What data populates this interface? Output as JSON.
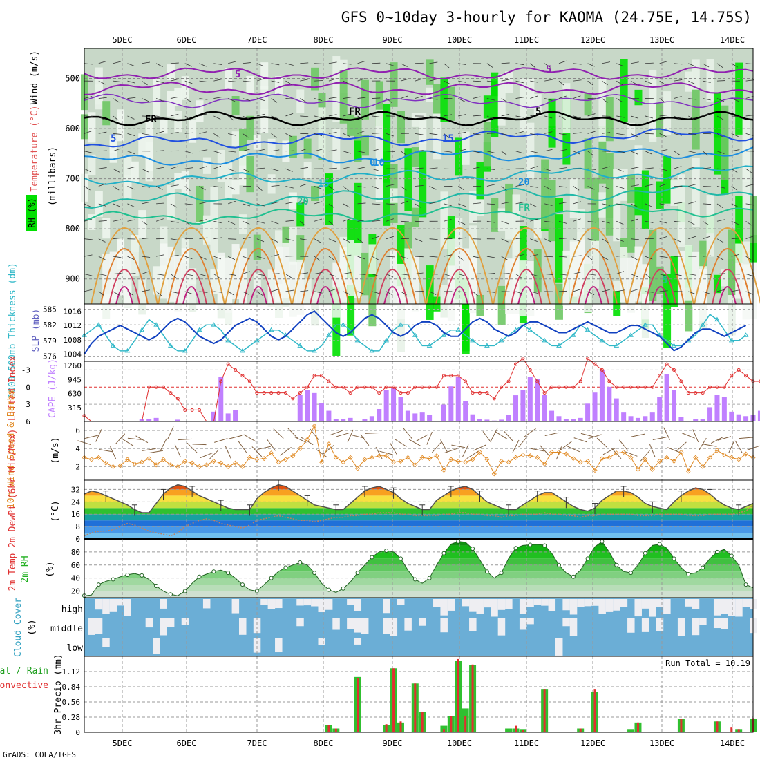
{
  "title": "GFS 0~10day 3-hourly for KAOMA (24.75E, 14.75S)",
  "credit": "GrADS: COLA/IGES",
  "run_total_label": "Run Total = 10.19",
  "colors": {
    "rh_dark_green": "#00e000",
    "rh_green": "#6ec864",
    "rh_pale": "#c8d8c8",
    "thickness": "#30b8c8",
    "slp": "#1040c0",
    "lifted_index": "#e03030",
    "cape": "#c080ff",
    "wind_speed": "#e08820",
    "wind_barbs": "#806040",
    "cloud": "#6baed6",
    "precip_total": "#30c030",
    "precip_convective": "#e03030"
  },
  "chart_data": [
    {
      "panel": "upper-air",
      "type": "heatmap",
      "x_ticks": [
        "5DEC",
        "6DEC",
        "7DEC",
        "8DEC",
        "9DEC",
        "10DEC",
        "11DEC",
        "12DEC",
        "13DEC",
        "14DEC"
      ],
      "y_ticks": [
        "500",
        "600",
        "700",
        "800",
        "900"
      ],
      "ylabel_rh": "RH (%)",
      "ylabel_wind": "Wind (m/s)",
      "ylabel_temp": "Temperature (°C)",
      "ylabel_pressure": "(millibars)",
      "contour_labels": [
        "5",
        "FR",
        "5",
        "10",
        "15",
        "20",
        "FR",
        "5",
        "5",
        "15",
        "20",
        "FR",
        "5",
        "0"
      ],
      "ylim": [
        440,
        950
      ]
    },
    {
      "panel": "thickness-slp",
      "type": "line",
      "ylabel_left": "1000-500mb Thickness (dm)",
      "ylabel_right": "SLP (mb)",
      "left_ticks": [
        "585",
        "582",
        "579",
        "576"
      ],
      "right_ticks": [
        "1016",
        "1012",
        "1008",
        "1004"
      ],
      "series": [
        {
          "name": "1000-500mb Thickness (dm)",
          "values": [
            580,
            581,
            582,
            580,
            578,
            577,
            577,
            579,
            581,
            583,
            582,
            580,
            578,
            577,
            577,
            579,
            581,
            582,
            582,
            581,
            579,
            578,
            577,
            578,
            579,
            580,
            581,
            581,
            580,
            579,
            578,
            577,
            577,
            578,
            580,
            582,
            582,
            581,
            579,
            578,
            577,
            577,
            579,
            581,
            582,
            582,
            580,
            578,
            578,
            579,
            580,
            581,
            581,
            580,
            579,
            578,
            578,
            578,
            579,
            580,
            581,
            582,
            581,
            580,
            579,
            578,
            578,
            579,
            580,
            582,
            581,
            580,
            579,
            578,
            578,
            579,
            580,
            581,
            582,
            582,
            580,
            579,
            578,
            578,
            579,
            580,
            582,
            584,
            583,
            581,
            579,
            579,
            580
          ]
        },
        {
          "name": "SLP (mb)",
          "values": [
            1004,
            1007,
            1009,
            1010,
            1011,
            1012,
            1011,
            1010,
            1009,
            1008,
            1009,
            1011,
            1013,
            1014,
            1013,
            1011,
            1009,
            1008,
            1007,
            1008,
            1010,
            1012,
            1013,
            1014,
            1013,
            1011,
            1009,
            1008,
            1009,
            1011,
            1013,
            1015,
            1016,
            1014,
            1012,
            1010,
            1009,
            1010,
            1012,
            1014,
            1015,
            1014,
            1012,
            1010,
            1009,
            1010,
            1012,
            1013,
            1013,
            1012,
            1010,
            1009,
            1009,
            1011,
            1013,
            1014,
            1013,
            1011,
            1010,
            1009,
            1010,
            1012,
            1013,
            1013,
            1012,
            1011,
            1010,
            1010,
            1011,
            1012,
            1013,
            1012,
            1011,
            1010,
            1010,
            1011,
            1012,
            1012,
            1011,
            1010,
            1009,
            1007,
            1005,
            1006,
            1008,
            1010,
            1011,
            1011,
            1010,
            1009,
            1010,
            1011,
            1012
          ]
        }
      ]
    },
    {
      "panel": "li-cape",
      "type": "bar",
      "ylabel_left": "Lifted Index",
      "ylabel_right": "CAPE (J/kg)",
      "li_ticks": [
        "-3",
        "0",
        "3",
        "6"
      ],
      "cape_ticks": [
        "1260",
        "945",
        "630",
        "315"
      ],
      "series": [
        {
          "name": "Lifted Index",
          "values": [
            5,
            6,
            7,
            8,
            8,
            8,
            8,
            8,
            8,
            0,
            0,
            0,
            1,
            2,
            4,
            4,
            4,
            7,
            7,
            -1,
            -4,
            -3,
            -2,
            -1,
            1,
            1,
            1,
            1,
            1,
            2,
            1,
            0,
            -2,
            -2,
            -1,
            0,
            0,
            1,
            0,
            0,
            0,
            1,
            0,
            0,
            1,
            1,
            0,
            0,
            0,
            0,
            -2,
            -2,
            -2,
            -1,
            1,
            1,
            1,
            2,
            0,
            -1,
            -4,
            -5,
            -3,
            -1,
            1,
            0,
            0,
            0,
            0,
            -1,
            -5,
            -4,
            -3,
            -1,
            0,
            0,
            0,
            0,
            0,
            0,
            -2,
            -4,
            -3,
            -1,
            1,
            1,
            1,
            0,
            0,
            0,
            -2,
            -3,
            -2,
            -1,
            -1,
            -2
          ]
        },
        {
          "name": "CAPE (J/kg)",
          "values": [
            0,
            0,
            0,
            0,
            0,
            0,
            0,
            0,
            60,
            60,
            80,
            0,
            0,
            40,
            0,
            0,
            0,
            0,
            220,
            1000,
            180,
            260,
            0,
            0,
            0,
            0,
            0,
            0,
            0,
            0,
            600,
            700,
            640,
            420,
            240,
            60,
            60,
            80,
            0,
            60,
            120,
            280,
            700,
            750,
            560,
            240,
            180,
            200,
            140,
            0,
            380,
            790,
            1000,
            460,
            160,
            60,
            40,
            20,
            40,
            140,
            590,
            700,
            1000,
            950,
            600,
            240,
            120,
            60,
            60,
            80,
            400,
            650,
            1150,
            780,
            520,
            200,
            120,
            80,
            120,
            200,
            560,
            1060,
            700,
            100,
            0,
            60,
            60,
            320,
            600,
            560,
            220,
            160,
            120,
            140,
            240,
            380
          ]
        }
      ]
    },
    {
      "panel": "10m-wind",
      "type": "line",
      "ylabel_left": "10m Wind Speed & Barbs",
      "ylabel_right": "(m/s)",
      "y_ticks": [
        "6",
        "4",
        "2"
      ],
      "ylim": [
        0.5,
        7
      ],
      "series": [
        {
          "name": "10m Wind Speed",
          "values": [
            3.0,
            2.8,
            3.0,
            2.4,
            2.0,
            2.1,
            2.8,
            2.3,
            2.5,
            2.9,
            2.2,
            2.8,
            2.2,
            2.0,
            2.6,
            2.4,
            2.0,
            2.2,
            2.6,
            2.4,
            2.0,
            2.4,
            2.0,
            3.0,
            2.8,
            2.9,
            3.5,
            2.5,
            2.8,
            3.2,
            4.0,
            5.0,
            6.5,
            2.5,
            4.5,
            3.0,
            2.5,
            3.0,
            1.8,
            2.8,
            3.0,
            3.2,
            3.2,
            2.5,
            2.6,
            3.0,
            2.2,
            3.0,
            2.9,
            3.2,
            1.6,
            2.8,
            2.6,
            2.5,
            2.8,
            3.6,
            2.8,
            1.2,
            2.6,
            2.5,
            3.0,
            3.3,
            3.2,
            3.0,
            2.3,
            3.6,
            3.6,
            3.4,
            2.9,
            2.5,
            2.6,
            1.6,
            2.9,
            3.0,
            3.5,
            3.6,
            3.0,
            1.7,
            2.8,
            1.7,
            2.6,
            3.0,
            2.6,
            3.6,
            1.5,
            3.0,
            2.0,
            3.0,
            3.8,
            3.3,
            3.0,
            2.8,
            3.4,
            3.0
          ]
        }
      ]
    },
    {
      "panel": "2m-temp",
      "type": "area",
      "ylabel_left": "2m Temp 2m DewPt (6hr Min/Max)",
      "ylabel_right": "(°C)",
      "y_ticks": [
        "32",
        "24",
        "16",
        "8",
        "0"
      ],
      "ylim": [
        0,
        38
      ],
      "series": [
        {
          "name": "2m Temp",
          "values": [
            29,
            31,
            30,
            28,
            26,
            24,
            22,
            19,
            17,
            17,
            23,
            29,
            33,
            35,
            34,
            31,
            28,
            26,
            24,
            22,
            20,
            19,
            19,
            19,
            26,
            30,
            33,
            35,
            34,
            31,
            28,
            25,
            22,
            21,
            20,
            19,
            19,
            23,
            27,
            31,
            33,
            34,
            32,
            30,
            26,
            23,
            21,
            19,
            19,
            25,
            28,
            31,
            33,
            34,
            32,
            28,
            24,
            22,
            20,
            19,
            19,
            22,
            25,
            28,
            30,
            30,
            27,
            24,
            21,
            19,
            18,
            20,
            25,
            28,
            31,
            31,
            30,
            27,
            23,
            21,
            20,
            19,
            24,
            28,
            31,
            33,
            32,
            29,
            25,
            22,
            20,
            19,
            21,
            23
          ]
        },
        {
          "name": "2m DewPt",
          "values": [
            2,
            4,
            5,
            5,
            6,
            8,
            10,
            9,
            7,
            5,
            4,
            3,
            2,
            4,
            8,
            10,
            12,
            13,
            12,
            10,
            9,
            8,
            7,
            9,
            12,
            13,
            14,
            15,
            14,
            13,
            12,
            12,
            11,
            12,
            13,
            14,
            14,
            15,
            15,
            16,
            16,
            17,
            17,
            17,
            16,
            16,
            15,
            15,
            15,
            15,
            16,
            16,
            17,
            17,
            16,
            16,
            15,
            15,
            14,
            15,
            15,
            16,
            16,
            16,
            17,
            16,
            16,
            15,
            15,
            14,
            15,
            15,
            16,
            16,
            16,
            16,
            16,
            15,
            15,
            15,
            16,
            16,
            16,
            16,
            15,
            15,
            15,
            16,
            16,
            16,
            16,
            17,
            18,
            22
          ]
        }
      ]
    },
    {
      "panel": "2m-rh",
      "type": "area",
      "ylabel_left": "2m RH",
      "ylabel_right": "(%)",
      "y_ticks": [
        "80",
        "60",
        "40",
        "20"
      ],
      "ylim": [
        10,
        100
      ],
      "series": [
        {
          "name": "2m RH",
          "values": [
            13,
            14,
            30,
            35,
            38,
            42,
            45,
            47,
            44,
            38,
            28,
            20,
            15,
            13,
            20,
            32,
            42,
            46,
            50,
            52,
            48,
            40,
            30,
            22,
            20,
            30,
            40,
            50,
            56,
            60,
            64,
            60,
            48,
            32,
            22,
            18,
            24,
            34,
            48,
            60,
            72,
            80,
            82,
            80,
            70,
            52,
            38,
            32,
            40,
            60,
            78,
            92,
            96,
            95,
            85,
            68,
            50,
            40,
            48,
            70,
            86,
            90,
            91,
            92,
            90,
            78,
            60,
            48,
            42,
            52,
            70,
            88,
            96,
            80,
            60,
            50,
            48,
            60,
            78,
            90,
            92,
            86,
            70,
            56,
            46,
            48,
            56,
            70,
            80,
            84,
            74,
            60,
            30,
            25
          ]
        }
      ]
    },
    {
      "panel": "cloud-cover",
      "type": "heatmap",
      "ylabel_left": "Cloud Cover",
      "ylabel_right": "(%)",
      "levels": [
        "high",
        "middle",
        "low"
      ]
    },
    {
      "panel": "precip",
      "type": "bar",
      "ylabel_left": "Total / Rain Convective",
      "ylabel_right": "3hr Precip (mm)",
      "y_ticks": [
        "1.12",
        "0.84",
        "0.56",
        "0.28",
        "0"
      ],
      "x_ticks": [
        "5DEC",
        "6DEC",
        "7DEC",
        "8DEC",
        "9DEC",
        "10DEC",
        "11DEC",
        "12DEC",
        "13DEC",
        "14DEC"
      ],
      "ylim": [
        0,
        1.4
      ],
      "series": [
        {
          "name": "Total",
          "values": [
            0,
            0,
            0,
            0,
            0,
            0,
            0,
            0,
            0,
            0,
            0,
            0,
            0,
            0,
            0,
            0,
            0,
            0,
            0,
            0,
            0,
            0,
            0,
            0,
            0,
            0,
            0,
            0,
            0,
            0,
            0,
            0,
            0,
            0,
            0.13,
            0.07,
            0,
            0,
            1.02,
            0,
            0,
            0,
            0.13,
            1.18,
            0.18,
            0,
            0.9,
            0.38,
            0,
            0,
            0.12,
            0.3,
            1.32,
            0.44,
            1.24,
            0,
            0,
            0,
            0,
            0.07,
            0.07,
            0.06,
            0,
            0,
            0.8,
            0,
            0,
            0,
            0,
            0.07,
            0,
            0.75,
            0,
            0,
            0,
            0,
            0.06,
            0.18,
            0,
            0,
            0,
            0,
            0,
            0.25,
            0,
            0,
            0,
            0,
            0.2,
            0,
            0,
            0.06,
            0,
            0.25
          ]
        },
        {
          "name": "Convective",
          "values": [
            0,
            0,
            0,
            0,
            0,
            0,
            0,
            0,
            0,
            0,
            0,
            0,
            0,
            0,
            0,
            0,
            0,
            0,
            0,
            0,
            0,
            0,
            0,
            0,
            0,
            0,
            0,
            0,
            0,
            0,
            0,
            0,
            0,
            0,
            0.13,
            0.07,
            0,
            0,
            1.0,
            0,
            0,
            0,
            0.15,
            1.18,
            0.2,
            0,
            0.9,
            0.38,
            0,
            0,
            0.06,
            0.3,
            1.35,
            0.3,
            1.25,
            0,
            0,
            0,
            0,
            0,
            0.12,
            0.05,
            0,
            0,
            0.8,
            0,
            0,
            0,
            0,
            0.07,
            0,
            0.8,
            0,
            0,
            0,
            0,
            0,
            0.18,
            0,
            0,
            0,
            0,
            0,
            0.25,
            0,
            0,
            0,
            0,
            0.2,
            0,
            0.1,
            0.06,
            0,
            0.26
          ]
        }
      ]
    }
  ]
}
